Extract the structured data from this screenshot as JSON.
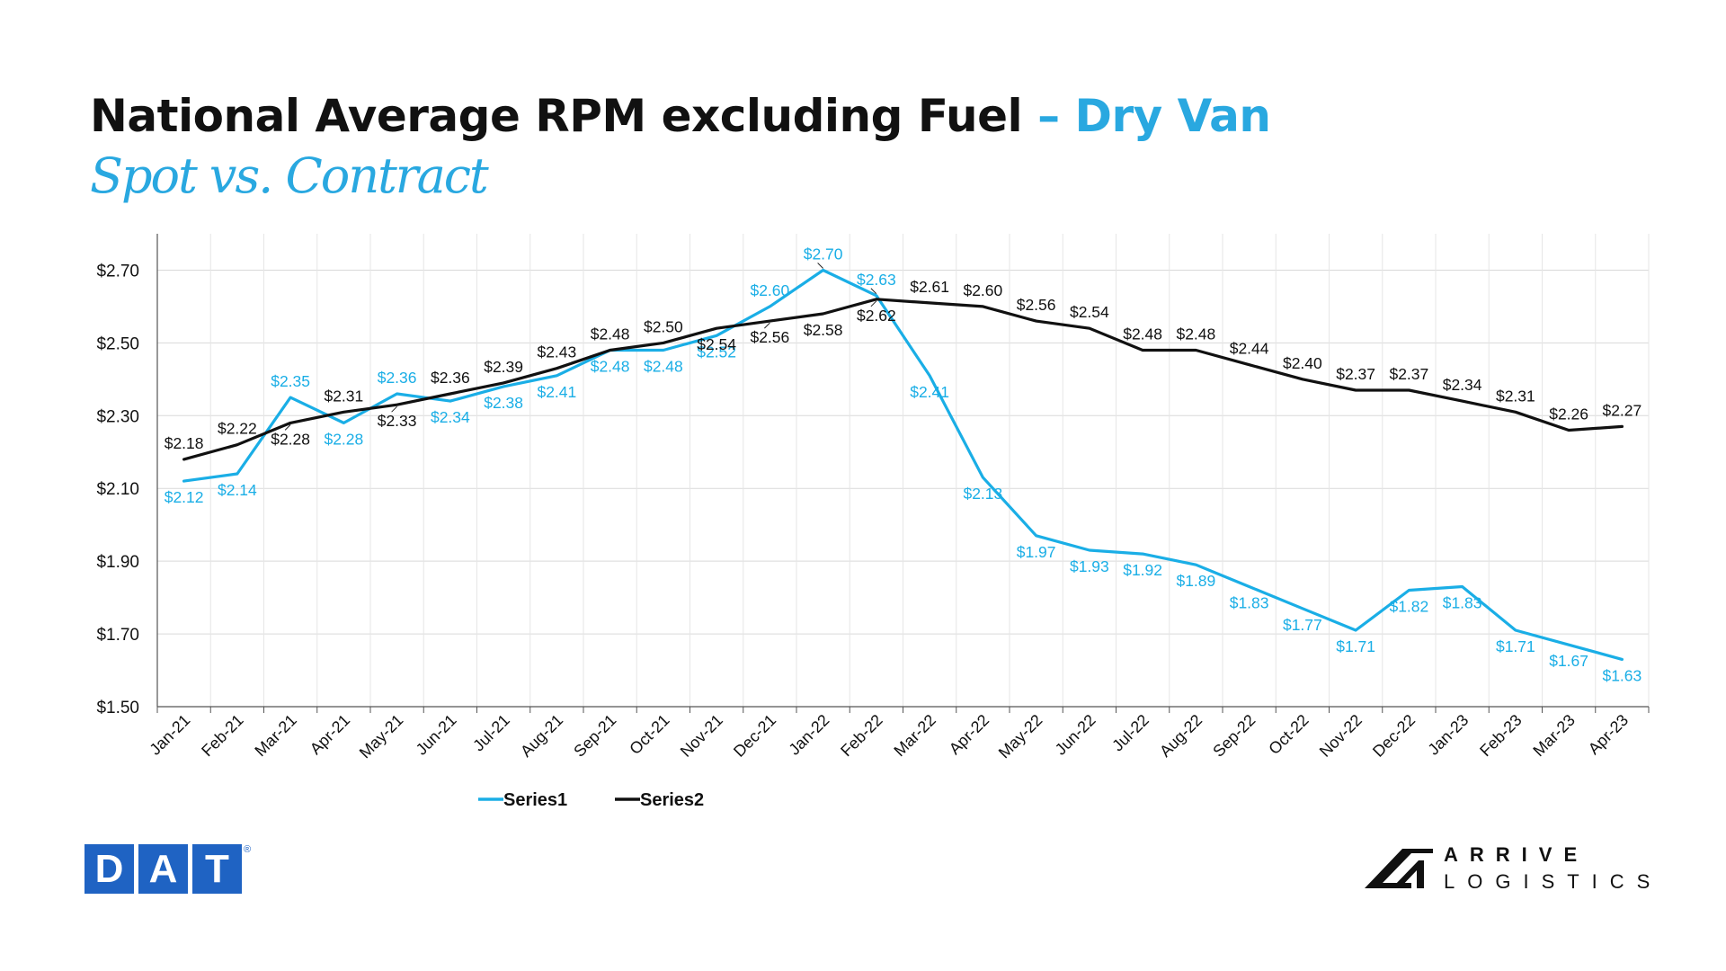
{
  "header": {
    "title_main": "National Average RPM excluding Fuel",
    "title_accent": "– Dry Van",
    "subtitle": "Spot vs. Contract"
  },
  "colors": {
    "accent": "#29a8e0",
    "series1": "#1aaee6",
    "series2": "#111111"
  },
  "chart_data": {
    "type": "line",
    "categories": [
      "Jan-21",
      "Feb-21",
      "Mar-21",
      "Apr-21",
      "May-21",
      "Jun-21",
      "Jul-21",
      "Aug-21",
      "Sep-21",
      "Oct-21",
      "Nov-21",
      "Dec-21",
      "Jan-22",
      "Feb-22",
      "Mar-22",
      "Apr-22",
      "May-22",
      "Jun-22",
      "Jul-22",
      "Aug-22",
      "Sep-22",
      "Oct-22",
      "Nov-22",
      "Dec-22",
      "Jan-23",
      "Feb-23",
      "Mar-23",
      "Apr-23"
    ],
    "series": [
      {
        "name": "Series1",
        "values": [
          2.12,
          2.14,
          2.35,
          2.28,
          2.36,
          2.34,
          2.38,
          2.41,
          2.48,
          2.48,
          2.52,
          2.6,
          2.7,
          2.63,
          2.41,
          2.13,
          1.97,
          1.93,
          1.92,
          1.89,
          1.83,
          1.77,
          1.71,
          1.82,
          1.83,
          1.71,
          1.67,
          1.63
        ],
        "labels": [
          "$2.12",
          "$2.14",
          "$2.35",
          "$2.28",
          "$2.36",
          "$2.34",
          "$2.38",
          "$2.41",
          "$2.48",
          "$2.48",
          "$2.52",
          "$2.60",
          "$2.70",
          "$2.63",
          "$2.41",
          "$2.13",
          "$1.97",
          "$1.93",
          "$1.92",
          "$1.89",
          "$1.83",
          "$1.77",
          "$1.71",
          "$1.82",
          "$1.83",
          "$1.71",
          "$1.67",
          "$1.63"
        ]
      },
      {
        "name": "Series2",
        "values": [
          2.18,
          2.22,
          2.28,
          2.31,
          2.33,
          2.36,
          2.39,
          2.43,
          2.48,
          2.5,
          2.54,
          2.56,
          2.58,
          2.62,
          2.61,
          2.6,
          2.56,
          2.54,
          2.48,
          2.48,
          2.44,
          2.4,
          2.37,
          2.37,
          2.34,
          2.31,
          2.26,
          2.27
        ],
        "labels": [
          "$2.18",
          "$2.22",
          "$2.28",
          "$2.31",
          "$2.33",
          "$2.36",
          "$2.39",
          "$2.43",
          "$2.48",
          "$2.50",
          "$2.54",
          "$2.56",
          "$2.58",
          "$2.62",
          "$2.61",
          "$2.60",
          "$2.56",
          "$2.54",
          "$2.48",
          "$2.48",
          "$2.44",
          "$2.40",
          "$2.37",
          "$2.37",
          "$2.34",
          "$2.31",
          "$2.26",
          "$2.27"
        ]
      }
    ],
    "ylim": [
      1.5,
      2.8
    ],
    "yticks": [
      1.5,
      1.7,
      1.9,
      2.1,
      2.3,
      2.5,
      2.7
    ],
    "ytick_labels": [
      "$1.50",
      "$1.70",
      "$1.90",
      "$2.10",
      "$2.30",
      "$2.50",
      "$2.70"
    ],
    "grid": true,
    "legend": "bottom-left",
    "title": "National Average RPM excluding Fuel – Dry Van",
    "subtitle": "Spot vs. Contract"
  },
  "logos": {
    "dat": {
      "letters": [
        "D",
        "A",
        "T"
      ],
      "reg": "®"
    },
    "arrive": {
      "line1": "ARRIVE",
      "line2": "LOGISTICS"
    }
  }
}
